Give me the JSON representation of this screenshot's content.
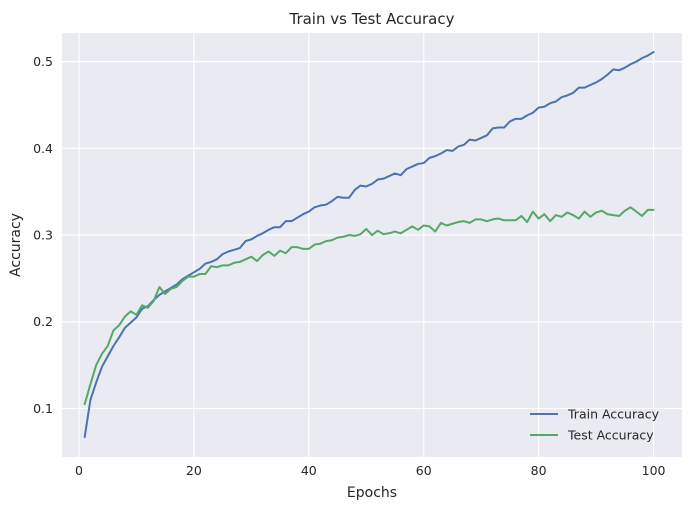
{
  "chart_data": {
    "type": "line",
    "title": "Train vs Test Accuracy",
    "xlabel": "Epochs",
    "ylabel": "Accuracy",
    "xlim": [
      -2.95,
      104.95
    ],
    "ylim": [
      0.044,
      0.533
    ],
    "xticks": [
      0,
      20,
      40,
      60,
      80,
      100
    ],
    "yticks": [
      0.1,
      0.2,
      0.3,
      0.4,
      0.5
    ],
    "grid": true,
    "legend_position": "lower-right",
    "background": "#eaeaf2",
    "x": [
      1,
      2,
      3,
      4,
      5,
      6,
      7,
      8,
      9,
      10,
      11,
      12,
      13,
      14,
      15,
      16,
      17,
      18,
      19,
      20,
      21,
      22,
      23,
      24,
      25,
      26,
      27,
      28,
      29,
      30,
      31,
      32,
      33,
      34,
      35,
      36,
      37,
      38,
      39,
      40,
      41,
      42,
      43,
      44,
      45,
      46,
      47,
      48,
      49,
      50,
      51,
      52,
      53,
      54,
      55,
      56,
      57,
      58,
      59,
      60,
      61,
      62,
      63,
      64,
      65,
      66,
      67,
      68,
      69,
      70,
      71,
      72,
      73,
      74,
      75,
      76,
      77,
      78,
      79,
      80,
      81,
      82,
      83,
      84,
      85,
      86,
      87,
      88,
      89,
      90,
      91,
      92,
      93,
      94,
      95,
      96,
      97,
      98,
      99,
      100
    ],
    "series": [
      {
        "name": "Train Accuracy",
        "color": "#4c72b0",
        "values": [
          0.067,
          0.11,
          0.13,
          0.148,
          0.16,
          0.172,
          0.182,
          0.193,
          0.199,
          0.205,
          0.215,
          0.218,
          0.225,
          0.231,
          0.235,
          0.239,
          0.243,
          0.249,
          0.253,
          0.257,
          0.261,
          0.267,
          0.269,
          0.272,
          0.278,
          0.281,
          0.283,
          0.285,
          0.293,
          0.295,
          0.299,
          0.302,
          0.306,
          0.309,
          0.309,
          0.316,
          0.316,
          0.32,
          0.324,
          0.327,
          0.332,
          0.334,
          0.335,
          0.339,
          0.344,
          0.343,
          0.343,
          0.352,
          0.357,
          0.356,
          0.359,
          0.364,
          0.365,
          0.368,
          0.371,
          0.369,
          0.376,
          0.379,
          0.382,
          0.383,
          0.389,
          0.391,
          0.394,
          0.398,
          0.397,
          0.402,
          0.404,
          0.41,
          0.409,
          0.412,
          0.415,
          0.423,
          0.424,
          0.424,
          0.431,
          0.434,
          0.434,
          0.438,
          0.441,
          0.447,
          0.448,
          0.452,
          0.454,
          0.459,
          0.461,
          0.464,
          0.47,
          0.47,
          0.473,
          0.476,
          0.48,
          0.485,
          0.491,
          0.49,
          0.493,
          0.497,
          0.5,
          0.504,
          0.507,
          0.511
        ]
      },
      {
        "name": "Test Accuracy",
        "color": "#55a868",
        "values": [
          0.105,
          0.128,
          0.15,
          0.163,
          0.172,
          0.19,
          0.196,
          0.206,
          0.212,
          0.208,
          0.219,
          0.216,
          0.224,
          0.24,
          0.232,
          0.238,
          0.24,
          0.247,
          0.252,
          0.252,
          0.255,
          0.255,
          0.264,
          0.263,
          0.265,
          0.265,
          0.268,
          0.269,
          0.272,
          0.275,
          0.27,
          0.277,
          0.281,
          0.276,
          0.282,
          0.279,
          0.286,
          0.286,
          0.284,
          0.284,
          0.289,
          0.29,
          0.293,
          0.294,
          0.297,
          0.298,
          0.3,
          0.299,
          0.301,
          0.307,
          0.3,
          0.305,
          0.301,
          0.302,
          0.304,
          0.302,
          0.306,
          0.31,
          0.306,
          0.311,
          0.31,
          0.304,
          0.314,
          0.311,
          0.313,
          0.315,
          0.316,
          0.314,
          0.318,
          0.318,
          0.316,
          0.318,
          0.319,
          0.317,
          0.317,
          0.317,
          0.322,
          0.315,
          0.327,
          0.319,
          0.324,
          0.316,
          0.323,
          0.321,
          0.326,
          0.323,
          0.319,
          0.327,
          0.321,
          0.326,
          0.328,
          0.324,
          0.323,
          0.322,
          0.328,
          0.332,
          0.327,
          0.322,
          0.329,
          0.329
        ]
      }
    ]
  }
}
